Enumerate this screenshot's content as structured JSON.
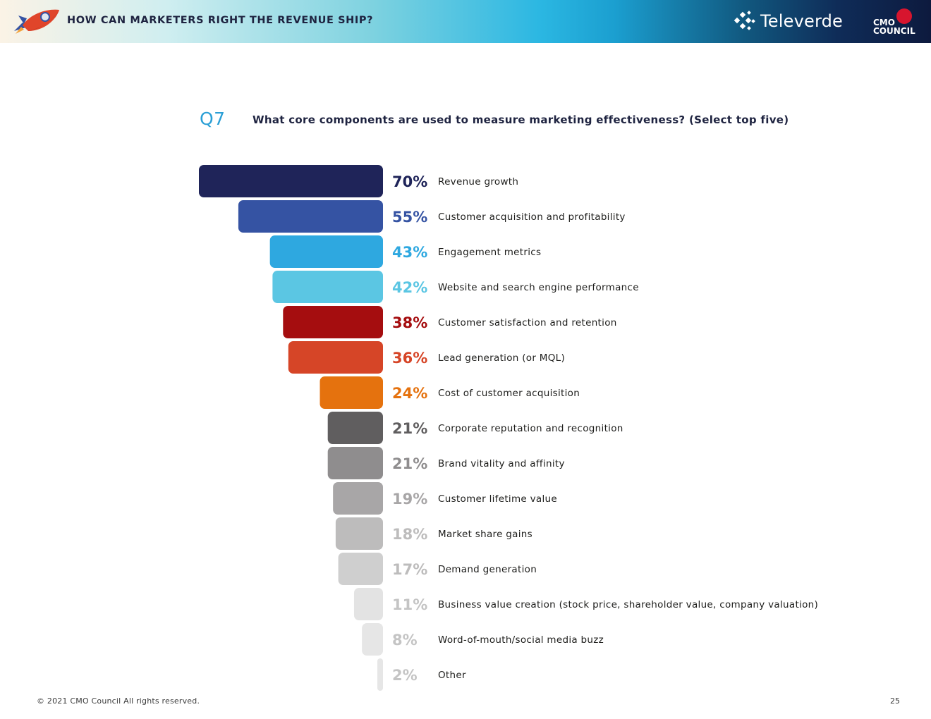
{
  "header": {
    "title": "HOW CAN MARKETERS RIGHT THE REVENUE SHIP?",
    "brand_televerde": "Televerde",
    "brand_cmo_top": "CMO",
    "brand_cmo_bottom": "COUNCIL"
  },
  "question": {
    "number": "Q7",
    "text": "What core components are used to measure marketing effectiveness? (Select top five)"
  },
  "chart_data": {
    "type": "bar",
    "orientation": "horizontal",
    "title": "What core components are used to measure marketing effectiveness? (Select top five)",
    "categories": [
      "Revenue growth",
      "Customer acquisition and profitability",
      "Engagement metrics",
      "Website and search engine performance",
      "Customer satisfaction and retention",
      "Lead generation (or MQL)",
      "Cost of customer acquisition",
      "Corporate reputation and recognition",
      "Brand vitality and affinity",
      "Customer lifetime value",
      "Market share gains",
      "Demand generation",
      "Business value creation (stock price, shareholder value, company valuation)",
      "Word-of-mouth/social media buzz",
      "Other"
    ],
    "values": [
      70,
      55,
      43,
      42,
      38,
      36,
      24,
      21,
      21,
      19,
      18,
      17,
      11,
      8,
      2
    ],
    "value_labels": [
      "70%",
      "55%",
      "43%",
      "42%",
      "38%",
      "36%",
      "24%",
      "21%",
      "21%",
      "19%",
      "18%",
      "17%",
      "11%",
      "8%",
      "2%"
    ],
    "bar_colors": [
      "#1f2459",
      "#3553a3",
      "#2ea8e0",
      "#5bc6e3",
      "#a50d0f",
      "#d64527",
      "#e5720e",
      "#605e5f",
      "#8f8d8e",
      "#a8a6a7",
      "#bdbcbc",
      "#cfcfcf",
      "#e3e3e3",
      "#e6e6e6",
      "#e6e6e6"
    ],
    "label_colors": [
      "#1f2459",
      "#3553a3",
      "#2ea8e0",
      "#5bc6e3",
      "#a50d0f",
      "#d64527",
      "#e5720e",
      "#605e5f",
      "#8f8d8e",
      "#a8a6a7",
      "#bdbcbc",
      "#bdbcbc",
      "#c4c4c4",
      "#c4c4c4",
      "#c4c4c4"
    ],
    "xlim": [
      0,
      70
    ],
    "xlabel": "",
    "ylabel": ""
  },
  "footer": {
    "copyright": "© 2021 CMO Council  All rights reserved.",
    "page_number": "25"
  }
}
